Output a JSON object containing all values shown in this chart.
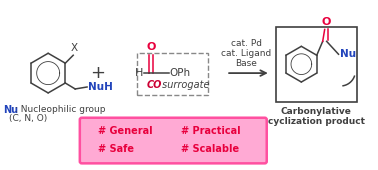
{
  "bg_color": "#ffffff",
  "bond_color": "#404040",
  "red_bond_color": "#e8003d",
  "blue_text_color": "#2244bb",
  "dark_red_text": "#cc0033",
  "black_text": "#333333",
  "conditions_text": [
    "cat. Pd",
    "cat. Ligand",
    "Base"
  ],
  "product_label": "Carbonylative\ncyclization product",
  "pink_fill": "#ffaad4",
  "pink_edge": "#ff50a0",
  "red_hashtag": "#e8003d",
  "hashtag_row1": [
    "# General",
    "# Practical"
  ],
  "hashtag_row2": [
    "# Safe",
    "# Scalable"
  ]
}
